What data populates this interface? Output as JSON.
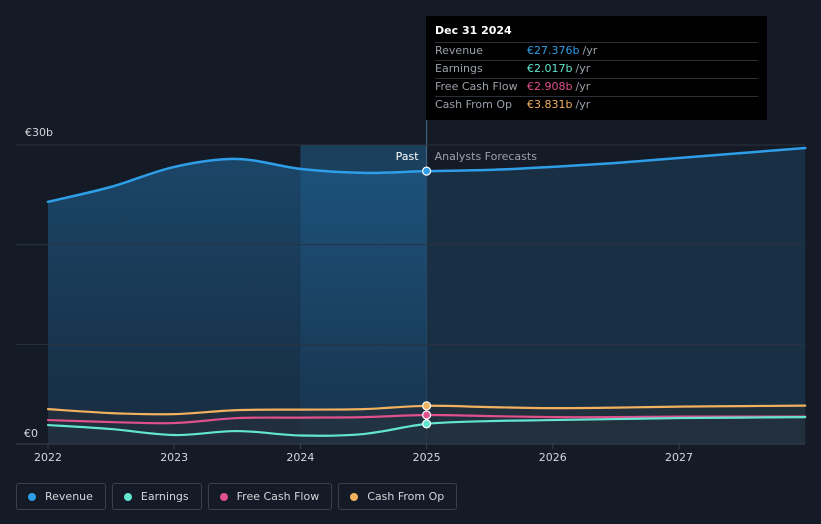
{
  "tooltip": {
    "date": "Dec 31 2024",
    "rows": [
      {
        "label": "Revenue",
        "value": "€27.376b",
        "unit": "/yr",
        "color": "#2f9ee8"
      },
      {
        "label": "Earnings",
        "value": "€2.017b",
        "unit": "/yr",
        "color": "#63e6d0"
      },
      {
        "label": "Free Cash Flow",
        "value": "€2.908b",
        "unit": "/yr",
        "color": "#e0508d"
      },
      {
        "label": "Cash From Op",
        "value": "€3.831b",
        "unit": "/yr",
        "color": "#f1b15f"
      }
    ]
  },
  "labels": {
    "past": "Past",
    "forecast": "Analysts Forecasts"
  },
  "legend": [
    {
      "label": "Revenue",
      "color": "#2f9ee8"
    },
    {
      "label": "Earnings",
      "color": "#63e6d0"
    },
    {
      "label": "Free Cash Flow",
      "color": "#e0508d"
    },
    {
      "label": "Cash From Op",
      "color": "#f1b15f"
    }
  ],
  "chart_data": {
    "type": "line",
    "x_tick_labels": [
      "2022",
      "2023",
      "2024",
      "2025",
      "2026",
      "2027"
    ],
    "x_ticks": [
      2022,
      2023,
      2024,
      2025,
      2026,
      2027
    ],
    "xlim": [
      2022,
      2028
    ],
    "ylim": [
      0,
      30
    ],
    "y_tick_labels": [
      "€0",
      "€30b"
    ],
    "y_ticks": [
      0,
      30
    ],
    "currency_unit": "€b",
    "grid": true,
    "past_end": 2025,
    "highlight_start": 2024,
    "series": [
      {
        "name": "Revenue",
        "color": "#2f9ee8",
        "area": true,
        "x": [
          2022,
          2022.5,
          2023,
          2023.5,
          2024,
          2024.5,
          2025,
          2025.5,
          2026,
          2026.5,
          2027,
          2027.5,
          2028
        ],
        "y": [
          24.3,
          25.8,
          27.8,
          28.6,
          27.6,
          27.2,
          27.376,
          27.5,
          27.8,
          28.2,
          28.7,
          29.2,
          29.7
        ]
      },
      {
        "name": "Cash From Op",
        "color": "#f1b15f",
        "area": false,
        "x": [
          2022,
          2022.5,
          2023,
          2023.5,
          2024,
          2024.5,
          2025,
          2025.5,
          2026,
          2026.5,
          2027,
          2027.5,
          2028
        ],
        "y": [
          3.5,
          3.1,
          3.0,
          3.4,
          3.45,
          3.5,
          3.831,
          3.7,
          3.6,
          3.65,
          3.75,
          3.8,
          3.85
        ]
      },
      {
        "name": "Free Cash Flow",
        "color": "#e0508d",
        "area": false,
        "x": [
          2022,
          2022.5,
          2023,
          2023.5,
          2024,
          2024.5,
          2025,
          2025.5,
          2026,
          2026.5,
          2027,
          2027.5,
          2028
        ],
        "y": [
          2.4,
          2.2,
          2.1,
          2.6,
          2.65,
          2.7,
          2.908,
          2.8,
          2.7,
          2.7,
          2.75,
          2.75,
          2.75
        ]
      },
      {
        "name": "Earnings",
        "color": "#63e6d0",
        "area": false,
        "x": [
          2022,
          2022.5,
          2023,
          2023.5,
          2024,
          2024.5,
          2025,
          2025.5,
          2026,
          2026.5,
          2027,
          2027.5,
          2028
        ],
        "y": [
          1.9,
          1.5,
          0.9,
          1.3,
          0.85,
          1.0,
          2.017,
          2.3,
          2.4,
          2.5,
          2.6,
          2.65,
          2.7
        ]
      }
    ]
  }
}
